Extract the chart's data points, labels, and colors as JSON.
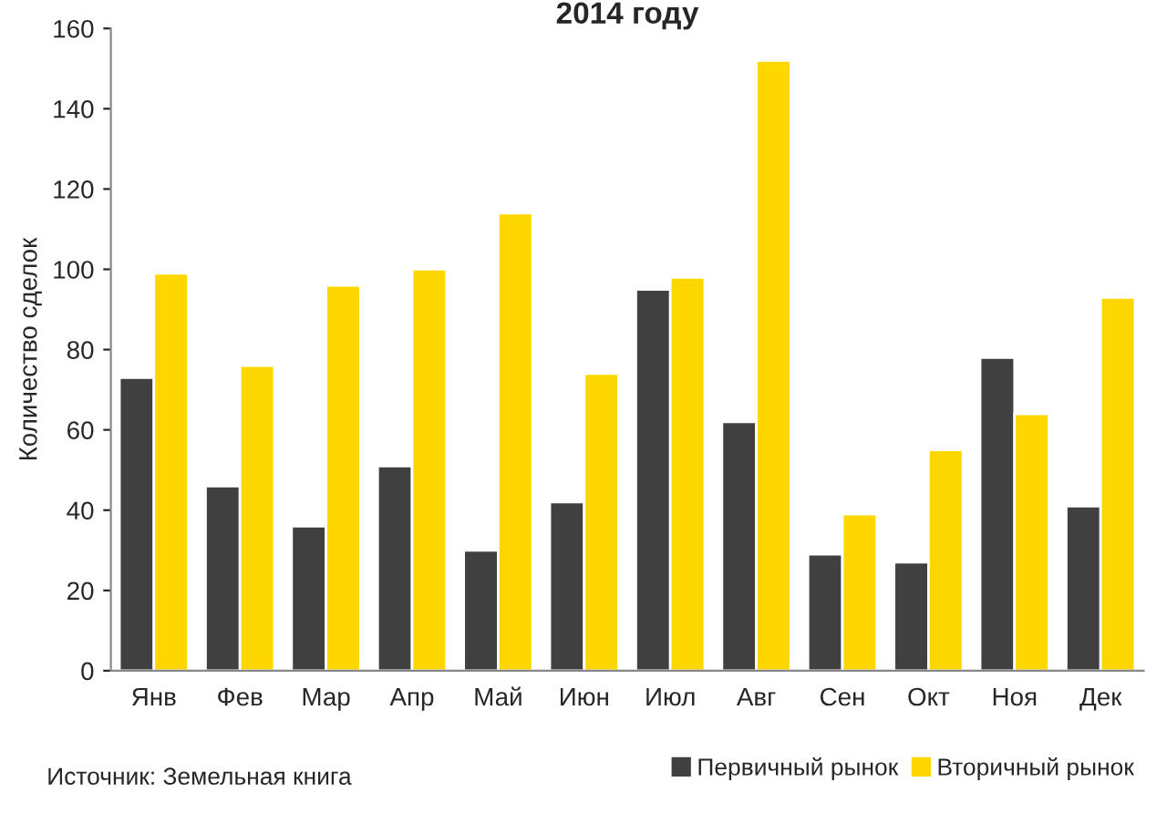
{
  "chart_data": {
    "type": "bar",
    "title": "2014 году",
    "ylabel": "Количество сделок",
    "categories": [
      "Янв",
      "Фев",
      "Мар",
      "Апр",
      "Май",
      "Июн",
      "Июл",
      "Авг",
      "Сен",
      "Окт",
      "Ноя",
      "Дек"
    ],
    "series": [
      {
        "name": "Первичный рынок",
        "color": "#404040",
        "values": [
          73,
          46,
          36,
          51,
          30,
          42,
          95,
          62,
          29,
          27,
          78,
          41
        ]
      },
      {
        "name": "Вторичный рынок",
        "color": "#ffd700",
        "values": [
          99,
          76,
          96,
          100,
          114,
          74,
          98,
          152,
          39,
          55,
          64,
          93
        ]
      }
    ],
    "ylim": [
      0,
      160
    ],
    "yticks": [
      0,
      20,
      40,
      60,
      80,
      100,
      120,
      140,
      160
    ],
    "grid": false,
    "legend": "bottom right",
    "annotations": [
      "Источник: Земельная книга"
    ]
  }
}
